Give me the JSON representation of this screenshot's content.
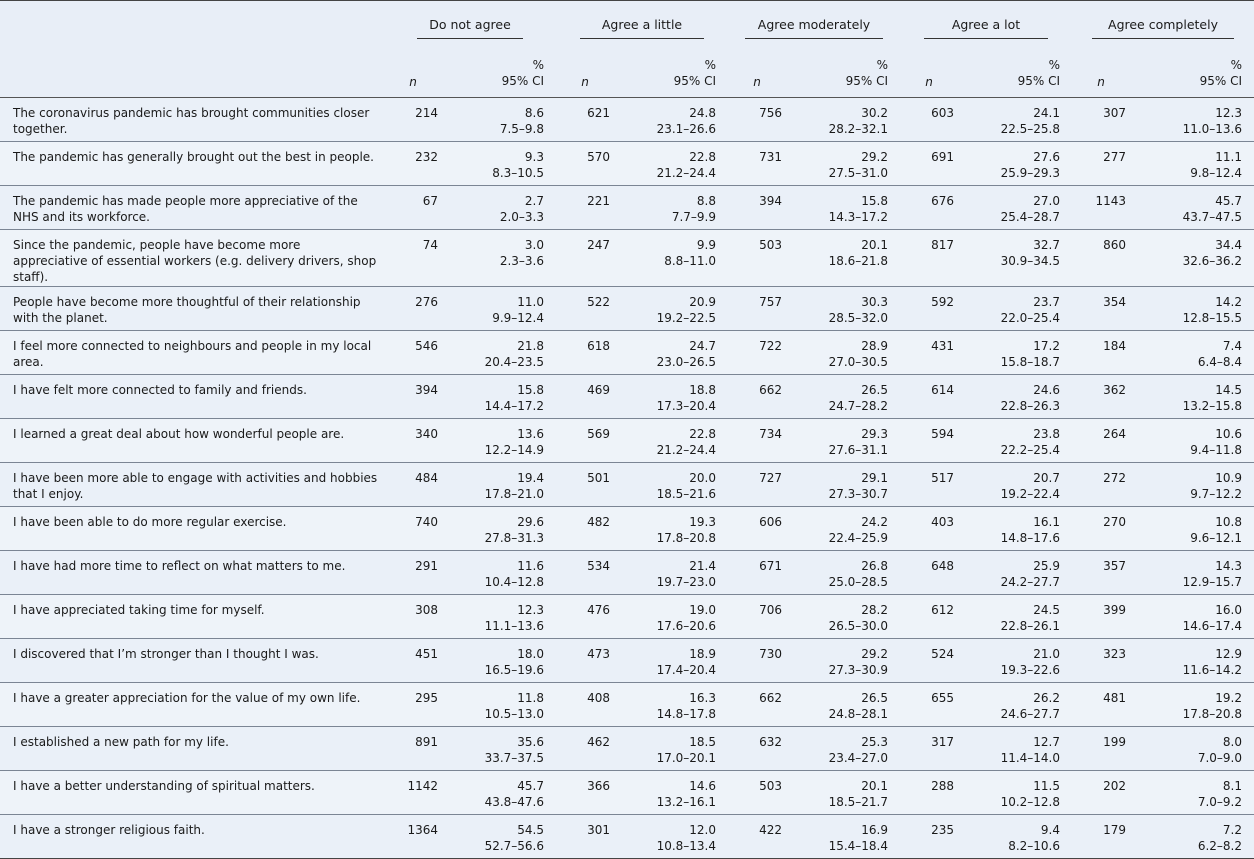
{
  "groups": [
    "Do not agree",
    "Agree a little",
    "Agree moderately",
    "Agree a lot",
    "Agree completely"
  ],
  "subheaders": {
    "n": "n",
    "pct": "%",
    "ci": "95% CI"
  },
  "rows": [
    {
      "item": "The coronavirus pandemic has brought communities closer together.",
      "cells": [
        {
          "n": "214",
          "pct": "8.6",
          "ci": "7.5–9.8"
        },
        {
          "n": "621",
          "pct": "24.8",
          "ci": "23.1–26.6"
        },
        {
          "n": "756",
          "pct": "30.2",
          "ci": "28.2–32.1"
        },
        {
          "n": "603",
          "pct": "24.1",
          "ci": "22.5–25.8"
        },
        {
          "n": "307",
          "pct": "12.3",
          "ci": "11.0–13.6"
        }
      ]
    },
    {
      "item": "The pandemic has generally brought out the best in people.",
      "cells": [
        {
          "n": "232",
          "pct": "9.3",
          "ci": "8.3–10.5"
        },
        {
          "n": "570",
          "pct": "22.8",
          "ci": "21.2–24.4"
        },
        {
          "n": "731",
          "pct": "29.2",
          "ci": "27.5–31.0"
        },
        {
          "n": "691",
          "pct": "27.6",
          "ci": "25.9–29.3"
        },
        {
          "n": "277",
          "pct": "11.1",
          "ci": "9.8–12.4"
        }
      ]
    },
    {
      "item": "The pandemic has made people more appreciative of the NHS and its workforce.",
      "cells": [
        {
          "n": "67",
          "pct": "2.7",
          "ci": "2.0–3.3"
        },
        {
          "n": "221",
          "pct": "8.8",
          "ci": "7.7–9.9"
        },
        {
          "n": "394",
          "pct": "15.8",
          "ci": "14.3–17.2"
        },
        {
          "n": "676",
          "pct": "27.0",
          "ci": "25.4–28.7"
        },
        {
          "n": "1143",
          "pct": "45.7",
          "ci": "43.7–47.5"
        }
      ]
    },
    {
      "item": "Since the pandemic, people have become more appreciative of essential workers (e.g. delivery drivers, shop staff).",
      "cells": [
        {
          "n": "74",
          "pct": "3.0",
          "ci": "2.3–3.6"
        },
        {
          "n": "247",
          "pct": "9.9",
          "ci": "8.8–11.0"
        },
        {
          "n": "503",
          "pct": "20.1",
          "ci": "18.6–21.8"
        },
        {
          "n": "817",
          "pct": "32.7",
          "ci": "30.9–34.5"
        },
        {
          "n": "860",
          "pct": "34.4",
          "ci": "32.6–36.2"
        }
      ]
    },
    {
      "item": "People have become more thoughtful of their relationship with the planet.",
      "cells": [
        {
          "n": "276",
          "pct": "11.0",
          "ci": "9.9–12.4"
        },
        {
          "n": "522",
          "pct": "20.9",
          "ci": "19.2–22.5"
        },
        {
          "n": "757",
          "pct": "30.3",
          "ci": "28.5–32.0"
        },
        {
          "n": "592",
          "pct": "23.7",
          "ci": "22.0–25.4"
        },
        {
          "n": "354",
          "pct": "14.2",
          "ci": "12.8–15.5"
        }
      ]
    },
    {
      "item": "I feel more connected to neighbours and people in my local area.",
      "cells": [
        {
          "n": "546",
          "pct": "21.8",
          "ci": "20.4–23.5"
        },
        {
          "n": "618",
          "pct": "24.7",
          "ci": "23.0–26.5"
        },
        {
          "n": "722",
          "pct": "28.9",
          "ci": "27.0–30.5"
        },
        {
          "n": "431",
          "pct": "17.2",
          "ci": "15.8–18.7"
        },
        {
          "n": "184",
          "pct": "7.4",
          "ci": "6.4–8.4"
        }
      ]
    },
    {
      "item": "I have felt more connected to family and friends.",
      "cells": [
        {
          "n": "394",
          "pct": "15.8",
          "ci": "14.4–17.2"
        },
        {
          "n": "469",
          "pct": "18.8",
          "ci": "17.3–20.4"
        },
        {
          "n": "662",
          "pct": "26.5",
          "ci": "24.7–28.2"
        },
        {
          "n": "614",
          "pct": "24.6",
          "ci": "22.8–26.3"
        },
        {
          "n": "362",
          "pct": "14.5",
          "ci": "13.2–15.8"
        }
      ]
    },
    {
      "item": "I learned a great deal about how wonderful people are.",
      "cells": [
        {
          "n": "340",
          "pct": "13.6",
          "ci": "12.2–14.9"
        },
        {
          "n": "569",
          "pct": "22.8",
          "ci": "21.2–24.4"
        },
        {
          "n": "734",
          "pct": "29.3",
          "ci": "27.6–31.1"
        },
        {
          "n": "594",
          "pct": "23.8",
          "ci": "22.2–25.4"
        },
        {
          "n": "264",
          "pct": "10.6",
          "ci": "9.4–11.8"
        }
      ]
    },
    {
      "item": "I have been more able to engage with activities and hobbies that I enjoy.",
      "cells": [
        {
          "n": "484",
          "pct": "19.4",
          "ci": "17.8–21.0"
        },
        {
          "n": "501",
          "pct": "20.0",
          "ci": "18.5–21.6"
        },
        {
          "n": "727",
          "pct": "29.1",
          "ci": "27.3–30.7"
        },
        {
          "n": "517",
          "pct": "20.7",
          "ci": "19.2–22.4"
        },
        {
          "n": "272",
          "pct": "10.9",
          "ci": "9.7–12.2"
        }
      ]
    },
    {
      "item": "I have been able to do more regular exercise.",
      "cells": [
        {
          "n": "740",
          "pct": "29.6",
          "ci": "27.8–31.3"
        },
        {
          "n": "482",
          "pct": "19.3",
          "ci": "17.8–20.8"
        },
        {
          "n": "606",
          "pct": "24.2",
          "ci": "22.4–25.9"
        },
        {
          "n": "403",
          "pct": "16.1",
          "ci": "14.8–17.6"
        },
        {
          "n": "270",
          "pct": "10.8",
          "ci": "9.6–12.1"
        }
      ]
    },
    {
      "item": "I have had more time to reflect on what matters to me.",
      "cells": [
        {
          "n": "291",
          "pct": "11.6",
          "ci": "10.4–12.8"
        },
        {
          "n": "534",
          "pct": "21.4",
          "ci": "19.7–23.0"
        },
        {
          "n": "671",
          "pct": "26.8",
          "ci": "25.0–28.5"
        },
        {
          "n": "648",
          "pct": "25.9",
          "ci": "24.2–27.7"
        },
        {
          "n": "357",
          "pct": "14.3",
          "ci": "12.9–15.7"
        }
      ]
    },
    {
      "item": "I have appreciated taking time for myself.",
      "cells": [
        {
          "n": "308",
          "pct": "12.3",
          "ci": "11.1–13.6"
        },
        {
          "n": "476",
          "pct": "19.0",
          "ci": "17.6–20.6"
        },
        {
          "n": "706",
          "pct": "28.2",
          "ci": "26.5–30.0"
        },
        {
          "n": "612",
          "pct": "24.5",
          "ci": "22.8–26.1"
        },
        {
          "n": "399",
          "pct": "16.0",
          "ci": "14.6–17.4"
        }
      ]
    },
    {
      "item": "I discovered that I’m stronger than I thought I was.",
      "cells": [
        {
          "n": "451",
          "pct": "18.0",
          "ci": "16.5–19.6"
        },
        {
          "n": "473",
          "pct": "18.9",
          "ci": "17.4–20.4"
        },
        {
          "n": "730",
          "pct": "29.2",
          "ci": "27.3–30.9"
        },
        {
          "n": "524",
          "pct": "21.0",
          "ci": "19.3–22.6"
        },
        {
          "n": "323",
          "pct": "12.9",
          "ci": "11.6–14.2"
        }
      ]
    },
    {
      "item": "I have a greater appreciation for the value of my own life.",
      "cells": [
        {
          "n": "295",
          "pct": "11.8",
          "ci": "10.5–13.0"
        },
        {
          "n": "408",
          "pct": "16.3",
          "ci": "14.8–17.8"
        },
        {
          "n": "662",
          "pct": "26.5",
          "ci": "24.8–28.1"
        },
        {
          "n": "655",
          "pct": "26.2",
          "ci": "24.6–27.7"
        },
        {
          "n": "481",
          "pct": "19.2",
          "ci": "17.8–20.8"
        }
      ]
    },
    {
      "item": "I established a new path for my life.",
      "cells": [
        {
          "n": "891",
          "pct": "35.6",
          "ci": "33.7–37.5"
        },
        {
          "n": "462",
          "pct": "18.5",
          "ci": "17.0–20.1"
        },
        {
          "n": "632",
          "pct": "25.3",
          "ci": "23.4–27.0"
        },
        {
          "n": "317",
          "pct": "12.7",
          "ci": "11.4–14.0"
        },
        {
          "n": "199",
          "pct": "8.0",
          "ci": "7.0–9.0"
        }
      ]
    },
    {
      "item": "I have a better understanding of spiritual matters.",
      "cells": [
        {
          "n": "1142",
          "pct": "45.7",
          "ci": "43.8–47.6"
        },
        {
          "n": "366",
          "pct": "14.6",
          "ci": "13.2–16.1"
        },
        {
          "n": "503",
          "pct": "20.1",
          "ci": "18.5–21.7"
        },
        {
          "n": "288",
          "pct": "11.5",
          "ci": "10.2–12.8"
        },
        {
          "n": "202",
          "pct": "8.1",
          "ci": "7.0–9.2"
        }
      ]
    },
    {
      "item": "I have a stronger religious faith.",
      "cells": [
        {
          "n": "1364",
          "pct": "54.5",
          "ci": "52.7–56.6"
        },
        {
          "n": "301",
          "pct": "12.0",
          "ci": "10.8–13.4"
        },
        {
          "n": "422",
          "pct": "16.9",
          "ci": "15.4–18.4"
        },
        {
          "n": "235",
          "pct": "9.4",
          "ci": "8.2–10.6"
        },
        {
          "n": "179",
          "pct": "7.2",
          "ci": "6.2–8.2"
        }
      ]
    }
  ]
}
